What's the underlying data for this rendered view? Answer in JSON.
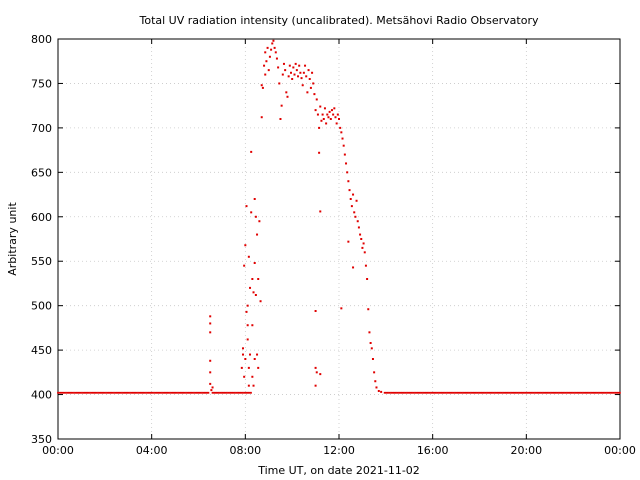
{
  "chart_data": {
    "type": "scatter",
    "title": "Total UV radiation intensity (uncalibrated). Metsähovi Radio Observatory",
    "xlabel": "Time UT, on date 2021-11-02",
    "ylabel": "Arbitrary unit",
    "xlim": [
      0,
      24
    ],
    "ylim": [
      350,
      800
    ],
    "x_ticks": [
      {
        "value": 0,
        "label": "00:00"
      },
      {
        "value": 4,
        "label": "04:00"
      },
      {
        "value": 8,
        "label": "08:00"
      },
      {
        "value": 12,
        "label": "12:00"
      },
      {
        "value": 16,
        "label": "16:00"
      },
      {
        "value": 20,
        "label": "20:00"
      },
      {
        "value": 24,
        "label": "00:00"
      }
    ],
    "y_ticks": [
      350,
      400,
      450,
      500,
      550,
      600,
      650,
      700,
      750,
      800
    ],
    "grid": true,
    "marker_color": "#e00000",
    "series": [
      {
        "baseline_value": 402,
        "baseline_segments": [
          [
            0.0,
            6.45
          ],
          [
            6.6,
            8.3
          ],
          [
            13.95,
            24.0
          ]
        ],
        "points": [
          [
            6.5,
            412
          ],
          [
            6.5,
            425
          ],
          [
            6.5,
            438
          ],
          [
            6.5,
            470
          ],
          [
            6.5,
            480
          ],
          [
            6.5,
            488
          ],
          [
            6.55,
            405
          ],
          [
            6.6,
            408
          ],
          [
            7.85,
            430
          ],
          [
            7.9,
            452
          ],
          [
            7.9,
            445
          ],
          [
            7.95,
            545
          ],
          [
            7.95,
            420
          ],
          [
            8.0,
            568
          ],
          [
            8.0,
            440
          ],
          [
            8.05,
            612
          ],
          [
            8.05,
            493
          ],
          [
            8.1,
            500
          ],
          [
            8.1,
            478
          ],
          [
            8.1,
            462
          ],
          [
            8.15,
            555
          ],
          [
            8.15,
            430
          ],
          [
            8.15,
            410
          ],
          [
            8.2,
            520
          ],
          [
            8.2,
            445
          ],
          [
            8.25,
            673
          ],
          [
            8.25,
            605
          ],
          [
            8.3,
            530
          ],
          [
            8.3,
            478
          ],
          [
            8.3,
            420
          ],
          [
            8.35,
            515
          ],
          [
            8.35,
            410
          ],
          [
            8.4,
            620
          ],
          [
            8.4,
            548
          ],
          [
            8.4,
            440
          ],
          [
            8.45,
            600
          ],
          [
            8.45,
            512
          ],
          [
            8.5,
            580
          ],
          [
            8.5,
            445
          ],
          [
            8.55,
            530
          ],
          [
            8.55,
            430
          ],
          [
            8.6,
            595
          ],
          [
            8.65,
            505
          ],
          [
            8.7,
            712
          ],
          [
            8.7,
            748
          ],
          [
            8.75,
            745
          ],
          [
            8.8,
            770
          ],
          [
            8.85,
            785
          ],
          [
            8.85,
            760
          ],
          [
            8.9,
            775
          ],
          [
            8.95,
            790
          ],
          [
            9.0,
            765
          ],
          [
            9.05,
            780
          ],
          [
            9.1,
            788
          ],
          [
            9.15,
            795
          ],
          [
            9.2,
            798
          ],
          [
            9.25,
            790
          ],
          [
            9.3,
            785
          ],
          [
            9.35,
            778
          ],
          [
            9.4,
            768
          ],
          [
            9.45,
            750
          ],
          [
            9.5,
            710
          ],
          [
            9.55,
            725
          ],
          [
            9.6,
            760
          ],
          [
            9.65,
            772
          ],
          [
            9.7,
            765
          ],
          [
            9.75,
            740
          ],
          [
            9.8,
            735
          ],
          [
            9.85,
            758
          ],
          [
            9.9,
            770
          ],
          [
            9.95,
            762
          ],
          [
            10.0,
            755
          ],
          [
            10.05,
            768
          ],
          [
            10.1,
            760
          ],
          [
            10.15,
            772
          ],
          [
            10.2,
            765
          ],
          [
            10.25,
            758
          ],
          [
            10.3,
            770
          ],
          [
            10.35,
            762
          ],
          [
            10.4,
            756
          ],
          [
            10.45,
            748
          ],
          [
            10.5,
            762
          ],
          [
            10.55,
            770
          ],
          [
            10.6,
            758
          ],
          [
            10.65,
            740
          ],
          [
            10.7,
            765
          ],
          [
            10.75,
            755
          ],
          [
            10.8,
            745
          ],
          [
            10.85,
            762
          ],
          [
            10.9,
            750
          ],
          [
            10.95,
            738
          ],
          [
            11.0,
            720
          ],
          [
            11.0,
            494
          ],
          [
            11.0,
            430
          ],
          [
            11.0,
            410
          ],
          [
            11.05,
            732
          ],
          [
            11.05,
            425
          ],
          [
            11.1,
            715
          ],
          [
            11.15,
            700
          ],
          [
            11.15,
            672
          ],
          [
            11.2,
            724
          ],
          [
            11.2,
            606
          ],
          [
            11.25,
            708
          ],
          [
            11.3,
            715
          ],
          [
            11.35,
            710
          ],
          [
            11.4,
            722
          ],
          [
            11.45,
            705
          ],
          [
            11.5,
            715
          ],
          [
            11.55,
            712
          ],
          [
            11.6,
            718
          ],
          [
            11.65,
            710
          ],
          [
            11.7,
            720
          ],
          [
            11.75,
            715
          ],
          [
            11.8,
            722
          ],
          [
            11.85,
            712
          ],
          [
            11.9,
            705
          ],
          [
            11.95,
            715
          ],
          [
            12.0,
            710
          ],
          [
            12.05,
            700
          ],
          [
            12.1,
            695
          ],
          [
            12.15,
            688
          ],
          [
            12.2,
            680
          ],
          [
            12.25,
            670
          ],
          [
            12.3,
            660
          ],
          [
            12.35,
            650
          ],
          [
            12.4,
            640
          ],
          [
            12.45,
            630
          ],
          [
            12.5,
            620
          ],
          [
            12.55,
            612
          ],
          [
            12.6,
            625
          ],
          [
            12.65,
            605
          ],
          [
            12.7,
            600
          ],
          [
            12.75,
            618
          ],
          [
            12.8,
            595
          ],
          [
            12.85,
            588
          ],
          [
            12.9,
            580
          ],
          [
            12.95,
            575
          ],
          [
            13.0,
            565
          ],
          [
            13.05,
            570
          ],
          [
            13.1,
            560
          ],
          [
            13.15,
            545
          ],
          [
            13.2,
            530
          ],
          [
            13.25,
            496
          ],
          [
            13.3,
            470
          ],
          [
            13.35,
            458
          ],
          [
            13.4,
            452
          ],
          [
            13.45,
            440
          ],
          [
            13.5,
            425
          ],
          [
            13.55,
            415
          ],
          [
            13.6,
            408
          ],
          [
            13.7,
            404
          ],
          [
            13.8,
            403
          ],
          [
            12.4,
            572
          ],
          [
            12.6,
            543
          ],
          [
            12.1,
            497
          ],
          [
            11.2,
            423
          ]
        ]
      }
    ]
  }
}
